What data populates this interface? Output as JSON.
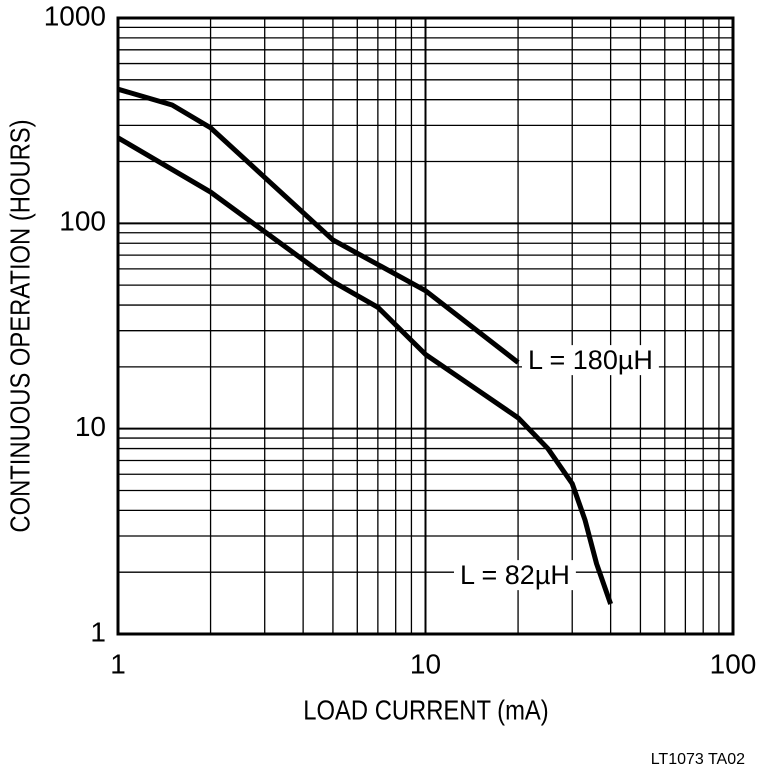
{
  "chart_data": {
    "type": "line",
    "xlabel": "LOAD CURRENT (mA)",
    "ylabel": "CONTINUOUS OPERATION (HOURS)",
    "footnote": "LT1073 TA02",
    "xscale": "log",
    "yscale": "log",
    "grid": true,
    "minor_grid": true,
    "xlim": [
      1,
      100
    ],
    "ylim": [
      1,
      1000
    ],
    "xticks": [
      1,
      10,
      100
    ],
    "yticks": [
      1,
      10,
      100,
      1000
    ],
    "series": [
      {
        "name": "L = 180µH",
        "color": "#000000",
        "x": [
          1,
          1.5,
          2,
          5,
          10,
          20
        ],
        "values": [
          450,
          377,
          292,
          83,
          47,
          21
        ]
      },
      {
        "name": "L = 82µH",
        "color": "#000000",
        "x": [
          1,
          2,
          5,
          7,
          10,
          20,
          25,
          30,
          33,
          36,
          40
        ],
        "values": [
          261,
          142,
          52,
          39,
          23,
          11.3,
          8,
          5.4,
          3.6,
          2.2,
          1.4
        ]
      }
    ]
  }
}
